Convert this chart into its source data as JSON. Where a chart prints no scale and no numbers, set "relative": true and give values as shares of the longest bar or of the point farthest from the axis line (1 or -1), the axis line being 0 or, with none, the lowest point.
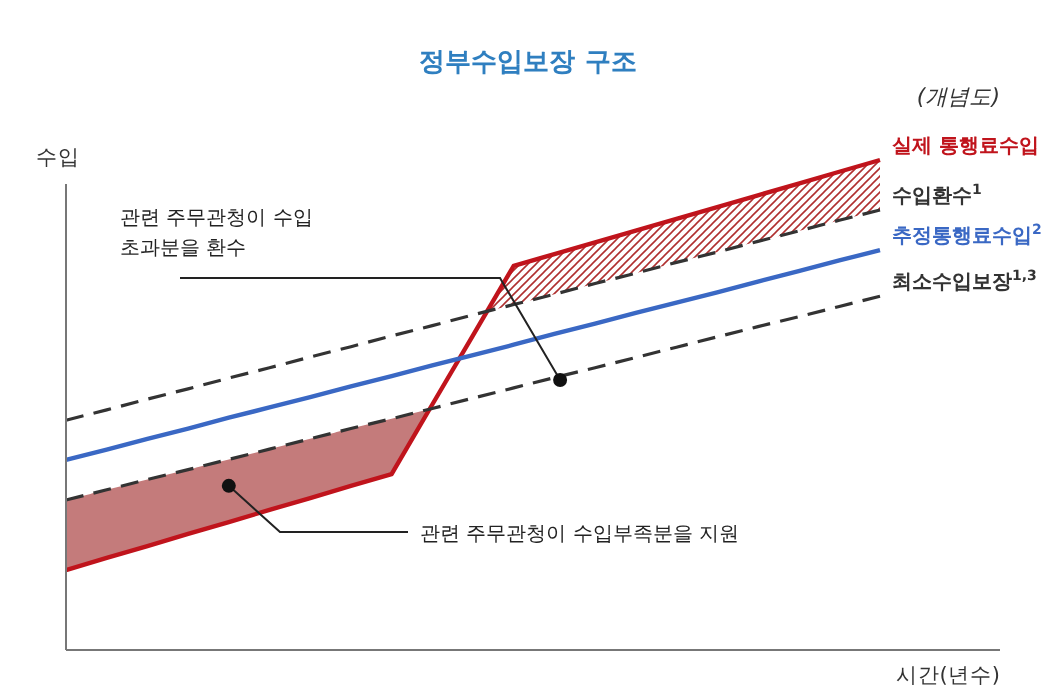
{
  "chart_data": {
    "type": "line",
    "relative": true,
    "title": "정부수입보장 구조",
    "subtitle": "(개념도)",
    "xlabel": "시간(년수)",
    "ylabel": "수입",
    "categories": [
      null,
      null,
      null,
      null,
      null,
      null,
      null,
      null,
      null,
      null,
      null,
      null,
      null,
      null,
      null,
      null,
      null,
      null,
      null,
      null,
      null
    ],
    "series": [
      {
        "name": "실제 통행료수입",
        "color": "#c0141c",
        "line_style": "solid",
        "values": [
          0.163,
          0.188,
          0.212,
          0.237,
          0.261,
          0.286,
          0.31,
          0.335,
          0.359,
          0.501,
          0.642,
          0.784,
          0.808,
          0.832,
          0.856,
          0.88,
          0.904,
          0.928,
          0.952,
          0.976,
          1.0
        ]
      },
      {
        "name": "수입환수$^{1}$",
        "color": "#333333",
        "line_style": "dashed",
        "values": [
          0.469,
          0.49,
          0.512,
          0.533,
          0.555,
          0.576,
          0.598,
          0.619,
          0.641,
          0.662,
          0.684,
          0.705,
          0.726,
          0.748,
          0.769,
          0.791,
          0.812,
          0.834,
          0.855,
          0.877,
          0.898
        ]
      },
      {
        "name": "추정통행료수입$^{2}$",
        "color": "#3a68c4",
        "line_style": "solid",
        "values": [
          0.388,
          0.409,
          0.431,
          0.452,
          0.474,
          0.495,
          0.516,
          0.538,
          0.559,
          0.581,
          0.602,
          0.623,
          0.645,
          0.666,
          0.688,
          0.709,
          0.73,
          0.752,
          0.773,
          0.795,
          0.816
        ]
      },
      {
        "name": "최소수입보장$^{1,3}$",
        "color": "#333333",
        "line_style": "dashed",
        "values": [
          0.306,
          0.327,
          0.348,
          0.368,
          0.389,
          0.41,
          0.431,
          0.452,
          0.472,
          0.493,
          0.514,
          0.535,
          0.556,
          0.576,
          0.597,
          0.618,
          0.639,
          0.66,
          0.68,
          0.701,
          0.722
        ]
      }
    ],
    "annotations": [
      "관련 주무관청이 수입\n초과분을 환수",
      "관련 주무관청이 수입부족분을 지원"
    ]
  }
}
